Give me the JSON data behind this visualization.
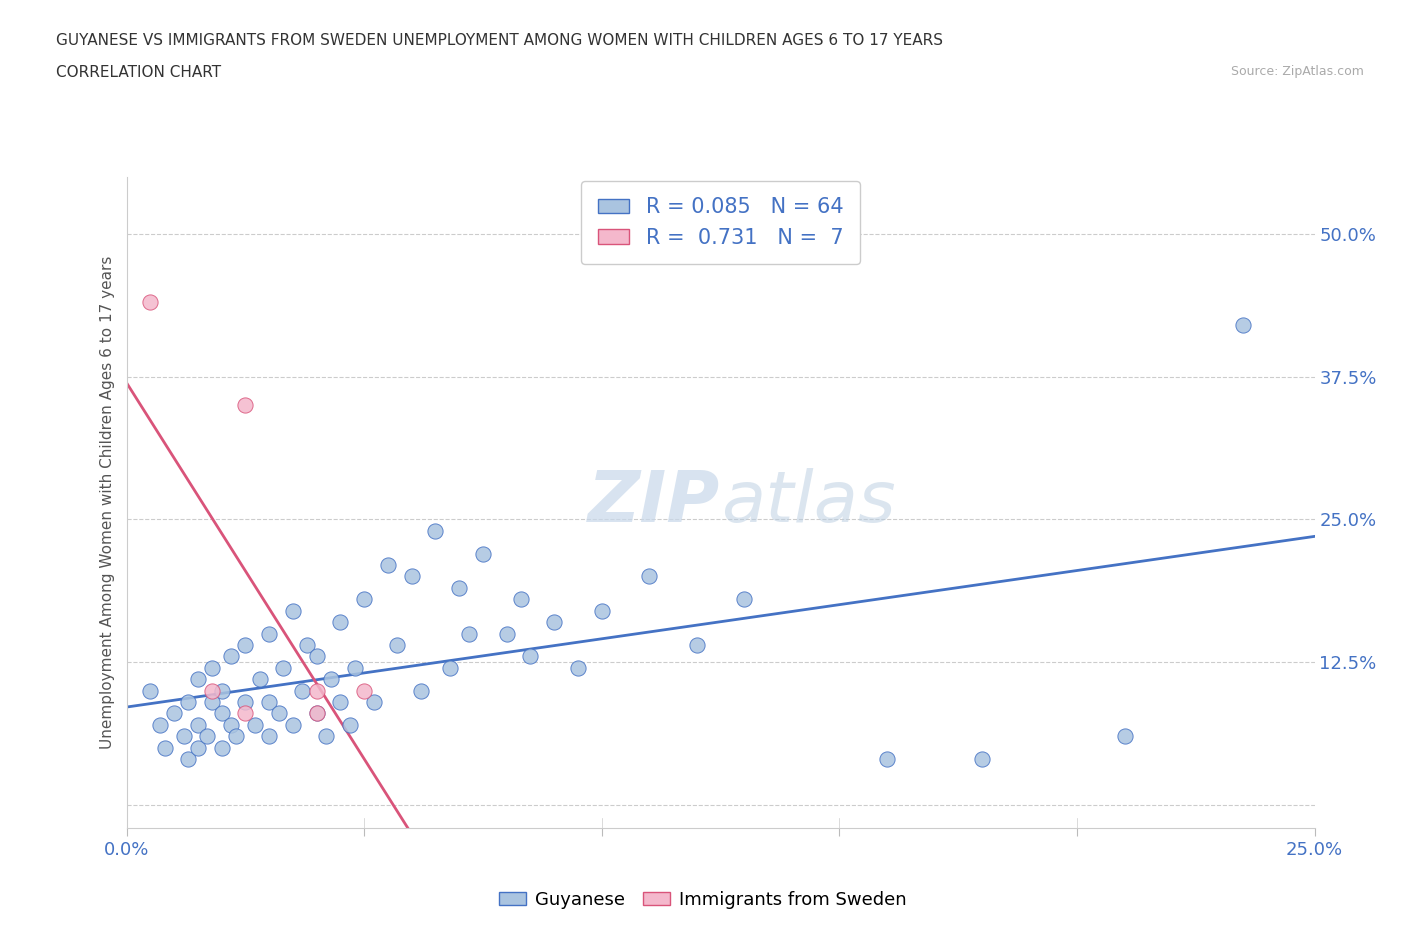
{
  "title_line1": "GUYANESE VS IMMIGRANTS FROM SWEDEN UNEMPLOYMENT AMONG WOMEN WITH CHILDREN AGES 6 TO 17 YEARS",
  "title_line2": "CORRELATION CHART",
  "source_text": "Source: ZipAtlas.com",
  "ylabel": "Unemployment Among Women with Children Ages 6 to 17 years",
  "xlim": [
    0.0,
    0.25
  ],
  "ylim": [
    -0.02,
    0.55
  ],
  "xticks": [
    0.0,
    0.05,
    0.1,
    0.15,
    0.2,
    0.25
  ],
  "yticks": [
    0.0,
    0.125,
    0.25,
    0.375,
    0.5
  ],
  "color_guyanese": "#aac4e0",
  "color_sweden": "#f4b8cc",
  "line_color_guyanese": "#4472c4",
  "line_color_sweden": "#d9547a",
  "r_guyanese": 0.085,
  "n_guyanese": 64,
  "r_sweden": 0.731,
  "n_sweden": 7,
  "watermark": "ZIPatlas",
  "guyanese_x": [
    0.005,
    0.007,
    0.008,
    0.01,
    0.012,
    0.013,
    0.013,
    0.015,
    0.015,
    0.015,
    0.017,
    0.018,
    0.018,
    0.02,
    0.02,
    0.02,
    0.022,
    0.022,
    0.023,
    0.025,
    0.025,
    0.027,
    0.028,
    0.03,
    0.03,
    0.03,
    0.032,
    0.033,
    0.035,
    0.035,
    0.037,
    0.038,
    0.04,
    0.04,
    0.042,
    0.043,
    0.045,
    0.045,
    0.047,
    0.048,
    0.05,
    0.052,
    0.055,
    0.057,
    0.06,
    0.062,
    0.065,
    0.068,
    0.07,
    0.072,
    0.075,
    0.08,
    0.083,
    0.085,
    0.09,
    0.095,
    0.1,
    0.11,
    0.12,
    0.13,
    0.16,
    0.18,
    0.21,
    0.235
  ],
  "guyanese_y": [
    0.1,
    0.07,
    0.05,
    0.08,
    0.06,
    0.04,
    0.09,
    0.05,
    0.07,
    0.11,
    0.06,
    0.09,
    0.12,
    0.05,
    0.08,
    0.1,
    0.07,
    0.13,
    0.06,
    0.09,
    0.14,
    0.07,
    0.11,
    0.06,
    0.09,
    0.15,
    0.08,
    0.12,
    0.07,
    0.17,
    0.1,
    0.14,
    0.08,
    0.13,
    0.06,
    0.11,
    0.09,
    0.16,
    0.07,
    0.12,
    0.18,
    0.09,
    0.21,
    0.14,
    0.2,
    0.1,
    0.24,
    0.12,
    0.19,
    0.15,
    0.22,
    0.15,
    0.18,
    0.13,
    0.16,
    0.12,
    0.17,
    0.2,
    0.14,
    0.18,
    0.04,
    0.04,
    0.06,
    0.42
  ],
  "sweden_x": [
    0.005,
    0.018,
    0.025,
    0.025,
    0.04,
    0.04,
    0.05
  ],
  "sweden_y": [
    0.44,
    0.1,
    0.08,
    0.35,
    0.1,
    0.08,
    0.1
  ]
}
